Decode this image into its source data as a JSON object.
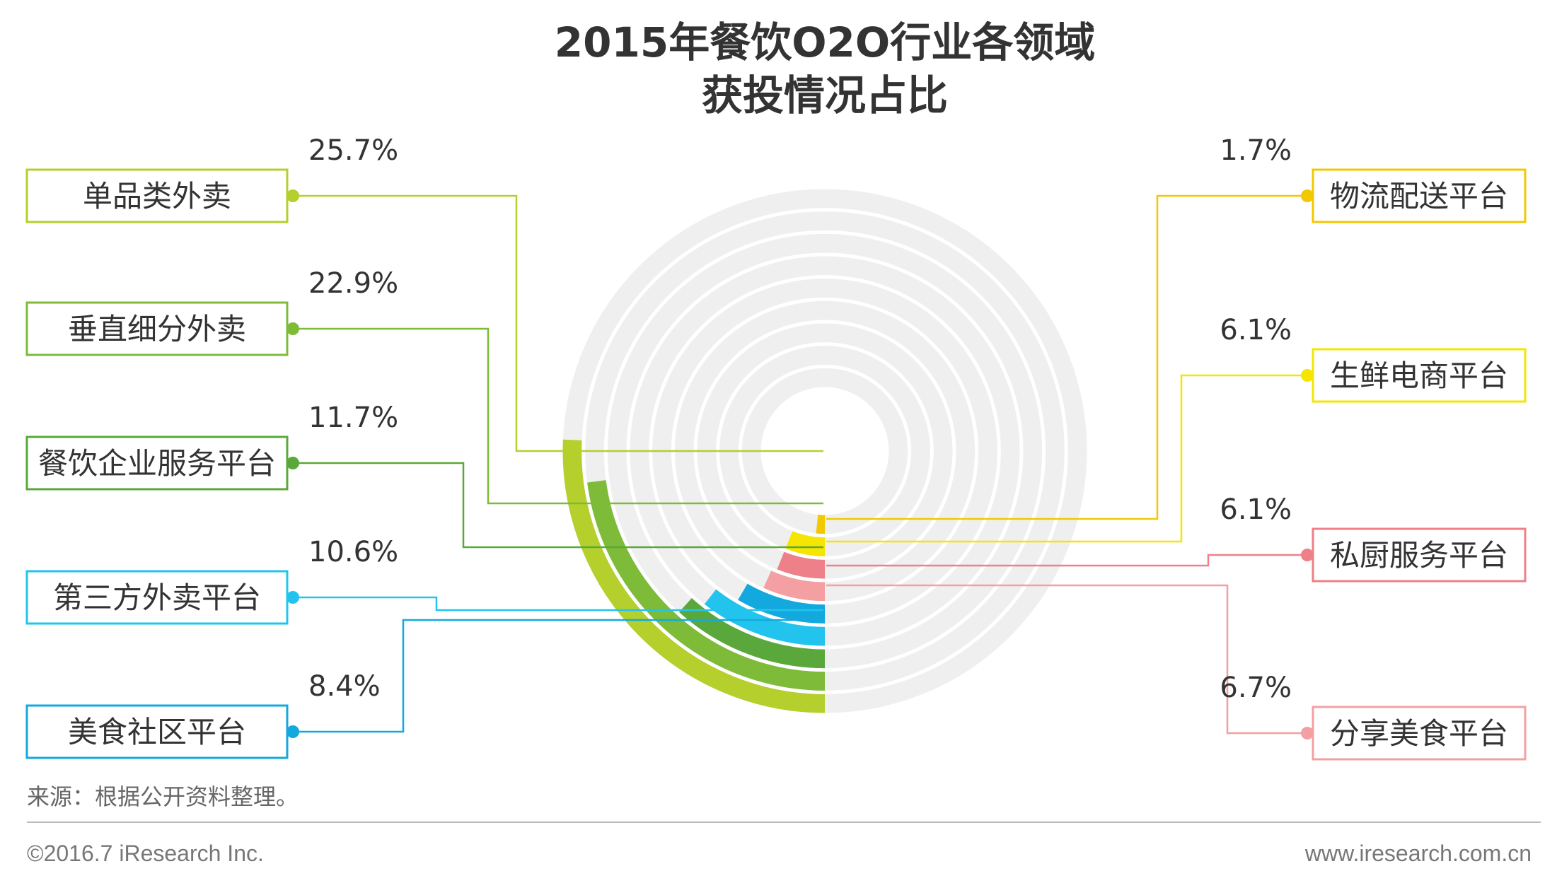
{
  "title_lines": [
    "2015年餐饮O2O行业各领域",
    "获投情况占比"
  ],
  "source": "来源：根据公开资料整理。",
  "footer": {
    "copyright": "©2016.7 iResearch Inc.",
    "website": "www.iresearch.com.cn"
  },
  "chart_data": {
    "type": "radial-bar",
    "title": "2015年餐饮O2O行业各领域获投情况占比",
    "unit": "%",
    "max_value": 100,
    "series": [
      {
        "name": "单品类外卖",
        "value": 25.7,
        "label": "25.7%",
        "color": "#b5cf2c",
        "side": "left"
      },
      {
        "name": "垂直细分外卖",
        "value": 22.9,
        "label": "22.9%",
        "color": "#7dbb38",
        "side": "left"
      },
      {
        "name": "餐饮企业服务平台",
        "value": 11.7,
        "label": "11.7%",
        "color": "#5aa83c",
        "side": "left"
      },
      {
        "name": "第三方外卖平台",
        "value": 10.6,
        "label": "10.6%",
        "color": "#22c4ee",
        "side": "left"
      },
      {
        "name": "美食社区平台",
        "value": 8.4,
        "label": "8.4%",
        "color": "#13a9de",
        "side": "left"
      },
      {
        "name": "分享美食平台",
        "value": 6.7,
        "label": "6.7%",
        "color": "#f4a0a3",
        "side": "right"
      },
      {
        "name": "私厨服务平台",
        "value": 6.1,
        "label": "6.1%",
        "color": "#ee8089",
        "side": "right"
      },
      {
        "name": "生鲜电商平台",
        "value": 6.1,
        "label": "6.1%",
        "color": "#f5e500",
        "side": "right"
      },
      {
        "name": "物流配送平台",
        "value": 1.7,
        "label": "1.7%",
        "color": "#f2c800",
        "side": "right"
      }
    ]
  }
}
